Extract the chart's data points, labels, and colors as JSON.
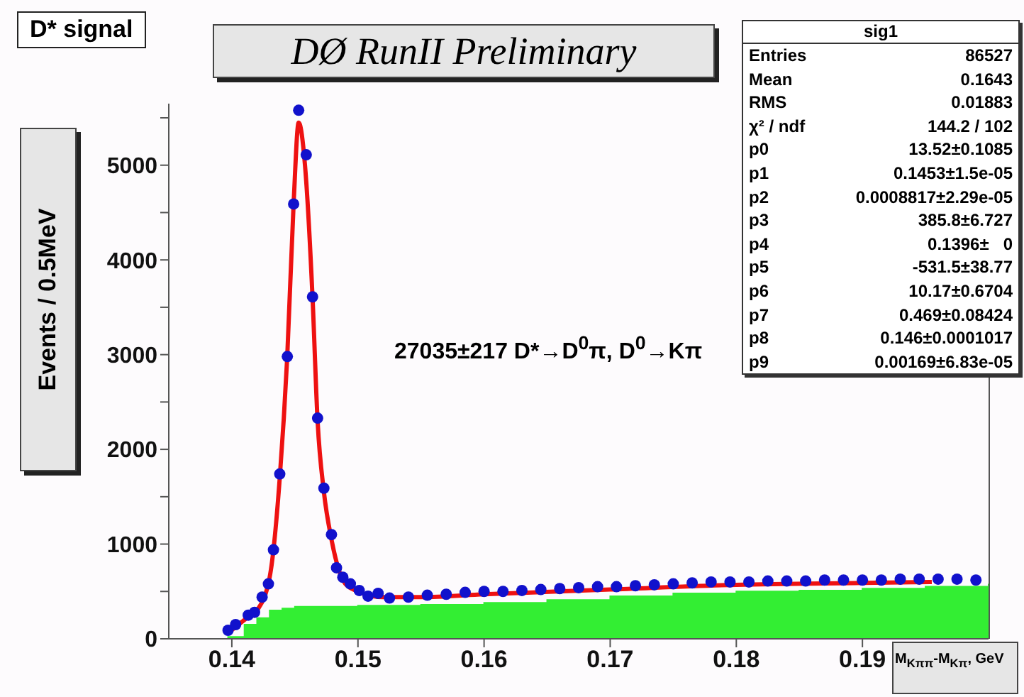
{
  "chart_data": {
    "type": "scatter",
    "title": "D* signal",
    "xlabel": "M$_{Kππ}$-M$_{Kπ}$, GeV",
    "ylabel": "Events / 0.5MeV",
    "annotations": [
      "DØ RunII Preliminary",
      "27035±217 D*→D$^{0}$π, D$^{0}$→Kπ",
      "sig1",
      "Entries  86527",
      "Mean  0.1643",
      "RMS  0.01883",
      "χ² / ndf  144.2 / 102",
      "p0  13.52±0.1085",
      "p1  0.1453±1.5e-05",
      "p2  0.0008817±2.29e-05",
      "p3  385.8±6.727",
      "p4  0.1396±   0",
      "p5  -531.5±38.77",
      "p6  10.17±0.6704",
      "p7  0.469±0.08424",
      "p8  0.146±0.0001017",
      "p9  0.00169±6.83e-05"
    ],
    "xlim": [
      0.135,
      0.2
    ],
    "xticks": [
      0.14,
      0.15,
      0.16,
      0.17,
      0.18,
      0.19
    ],
    "ylim": [
      0,
      5650
    ],
    "yticks": [
      0,
      {
        "value": 500,
        "label": null
      },
      1000,
      {
        "value": 1500,
        "label": null
      },
      2000,
      {
        "value": 2500,
        "label": null
      },
      3000,
      {
        "value": 3500,
        "label": null
      },
      4000,
      {
        "value": 4500,
        "label": null
      },
      5000,
      {
        "value": 5500,
        "label": null
      }
    ],
    "series": [
      {
        "type": "area",
        "color": "#33ee33",
        "x": [
          0.135,
          0.1396,
          0.1397,
          0.141,
          0.142,
          0.143,
          0.144,
          0.145,
          0.15,
          0.155,
          0.16,
          0.165,
          0.17,
          0.175,
          0.18,
          0.185,
          0.19,
          0.195,
          0.2
        ],
        "values": [
          0,
          0,
          20,
          150,
          220,
          300,
          320,
          340,
          350,
          360,
          380,
          410,
          450,
          480,
          500,
          510,
          530,
          550,
          580
        ]
      },
      {
        "type": "line",
        "color": "#ee1111",
        "x": [
          0.1397,
          0.141,
          0.142,
          0.143,
          0.1438,
          0.1444,
          0.1449,
          0.1453,
          0.1458,
          0.1464,
          0.1468,
          0.1473,
          0.1479,
          0.1485,
          0.149,
          0.15,
          0.152,
          0.155,
          0.16,
          0.17,
          0.18,
          0.19,
          0.1955
        ],
        "values": [
          60,
          200,
          300,
          650,
          1700,
          3000,
          4600,
          5450,
          5000,
          3600,
          2300,
          1550,
          1050,
          720,
          580,
          500,
          440,
          440,
          470,
          520,
          570,
          590,
          600
        ]
      },
      {
        "color": "#1111cc",
        "marker": "circle",
        "x": [
          0.1397,
          0.1403,
          0.1413,
          0.1418,
          0.1424,
          0.1429,
          0.1433,
          0.1438,
          0.1444,
          0.1449,
          0.1453,
          0.1459,
          0.1464,
          0.1468,
          0.1473,
          0.1479,
          0.1483,
          0.1488,
          0.1494,
          0.1501,
          0.1508,
          0.1516,
          0.1525,
          0.154,
          0.1555,
          0.157,
          0.1585,
          0.16,
          0.1615,
          0.163,
          0.1645,
          0.166,
          0.1675,
          0.169,
          0.1705,
          0.172,
          0.1735,
          0.175,
          0.1765,
          0.178,
          0.1795,
          0.181,
          0.1825,
          0.184,
          0.1855,
          0.187,
          0.1885,
          0.19,
          0.1915,
          0.193,
          0.1945,
          0.196,
          0.1975,
          0.199
        ],
        "values": [
          90,
          150,
          250,
          280,
          440,
          580,
          940,
          1740,
          2980,
          4590,
          5580,
          5110,
          3610,
          2330,
          1590,
          1100,
          750,
          650,
          580,
          510,
          450,
          480,
          430,
          440,
          460,
          470,
          490,
          500,
          500,
          510,
          520,
          530,
          540,
          550,
          550,
          560,
          570,
          580,
          590,
          600,
          600,
          600,
          610,
          610,
          610,
          620,
          620,
          620,
          620,
          630,
          630,
          630,
          630,
          620
        ]
      }
    ]
  }
}
